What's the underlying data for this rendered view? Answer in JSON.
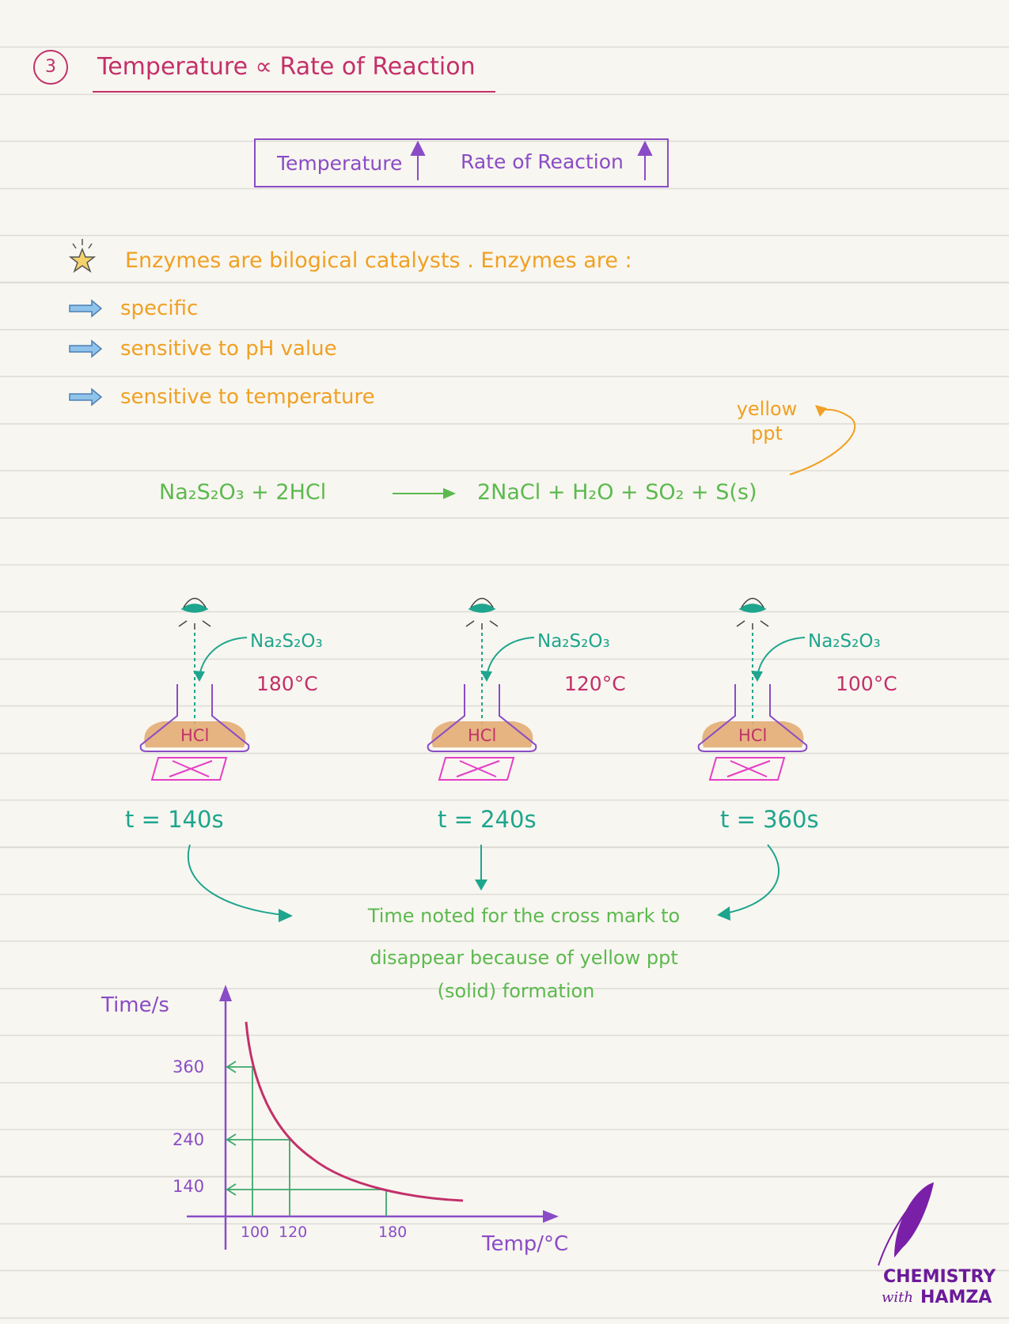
{
  "heading": {
    "number": "3",
    "title": "Temperature ∝ Rate of Reaction"
  },
  "summary_box": {
    "left": "Temperature",
    "right": "Rate of Reaction"
  },
  "enzymes": {
    "intro": "Enzymes are bilogical catalysts . Enzymes are :",
    "points": [
      "specific",
      "sensitive to pH value",
      "sensitive to temperature"
    ]
  },
  "equation": {
    "reactants": "Na₂S₂O₃ + 2HCl",
    "products": "2NaCl + H₂O + SO₂ + S(s)",
    "annotation": "yellow ppt"
  },
  "experiments": [
    {
      "reagent": "Na₂S₂O₃",
      "temperature": "180°C",
      "acid": "HCl",
      "time": "t = 140s"
    },
    {
      "reagent": "Na₂S₂O₃",
      "temperature": "120°C",
      "acid": "HCl",
      "time": "t = 240s"
    },
    {
      "reagent": "Na₂S₂O₃",
      "temperature": "100°C",
      "acid": "HCl",
      "time": "t = 360s"
    }
  ],
  "conclusion": [
    "Time noted for the cross mark to",
    "disappear because of yellow ppt",
    "(solid) formation"
  ],
  "graph": {
    "y_label": "Time/s",
    "x_label": "Temp/°C",
    "y_ticks": [
      360,
      240,
      140
    ],
    "x_ticks": [
      100,
      120,
      180
    ]
  },
  "logo": {
    "line1": "CHEMISTRY",
    "small": "with",
    "line2": "HAMZA"
  }
}
